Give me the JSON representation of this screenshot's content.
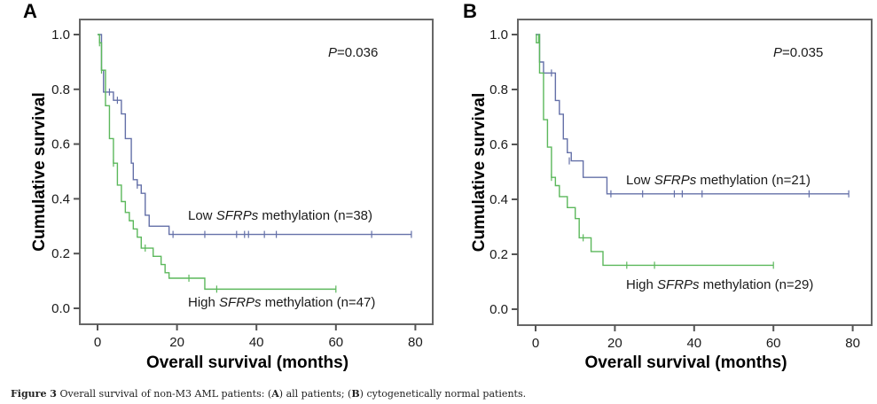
{
  "caption": {
    "label": "Figure 3",
    "text_1": " Overall survival of non-M3 AML patients: (",
    "a": "A",
    "text_2": ") all patients; (",
    "b": "B",
    "text_3": ") cytogenetically normal patients."
  },
  "colors": {
    "low": "#6470a8",
    "high": "#5cb85c",
    "axis": "#555555"
  },
  "chart_data": [
    {
      "type": "line",
      "subtype": "kaplan-meier-step",
      "panel": "A",
      "title": "",
      "xlabel": "Overall survival (months)",
      "ylabel": "Cumulative survival",
      "xlim": [
        -4,
        84
      ],
      "ylim": [
        -0.05,
        1.05
      ],
      "xticks": [
        0,
        20,
        40,
        60,
        80
      ],
      "yticks": [
        "0.0",
        "0.2",
        "0.4",
        "0.6",
        "0.8",
        "1.0"
      ],
      "grid": false,
      "annotation": {
        "p_label": "P",
        "p_value": "=0.036"
      },
      "series": [
        {
          "name": "Low SFRPs methylation (n=38)",
          "label_parts": [
            "Low ",
            "SFRPs",
            " methylation (n=38)"
          ],
          "color_key": "low",
          "steps": [
            [
              0,
              1.0
            ],
            [
              1,
              0.87
            ],
            [
              1.5,
              0.79
            ],
            [
              4,
              0.76
            ],
            [
              6,
              0.71
            ],
            [
              7,
              0.62
            ],
            [
              8.5,
              0.53
            ],
            [
              9,
              0.47
            ],
            [
              10,
              0.45
            ],
            [
              11,
              0.42
            ],
            [
              12,
              0.34
            ],
            [
              13,
              0.3
            ],
            [
              18,
              0.27
            ]
          ],
          "end_x": 79,
          "censors": [
            [
              3,
              0.79
            ],
            [
              5,
              0.76
            ],
            [
              10,
              0.45
            ],
            [
              19,
              0.27
            ],
            [
              27,
              0.27
            ],
            [
              35,
              0.27
            ],
            [
              37,
              0.27
            ],
            [
              38,
              0.27
            ],
            [
              42,
              0.27
            ],
            [
              45,
              0.27
            ],
            [
              69,
              0.27
            ],
            [
              79,
              0.27
            ]
          ]
        },
        {
          "name": "High SFRPs methylation (n=47)",
          "label_parts": [
            "High ",
            "SFRPs",
            " methylation (n=47)"
          ],
          "color_key": "high",
          "steps": [
            [
              0,
              1.0
            ],
            [
              0.5,
              0.97
            ],
            [
              1,
              0.87
            ],
            [
              2,
              0.74
            ],
            [
              3,
              0.62
            ],
            [
              4,
              0.53
            ],
            [
              5,
              0.45
            ],
            [
              6,
              0.39
            ],
            [
              7,
              0.35
            ],
            [
              8,
              0.32
            ],
            [
              9,
              0.29
            ],
            [
              10,
              0.26
            ],
            [
              11,
              0.22
            ],
            [
              14,
              0.19
            ],
            [
              16,
              0.16
            ],
            [
              17,
              0.13
            ],
            [
              18,
              0.11
            ],
            [
              27,
              0.07
            ]
          ],
          "end_x": 60,
          "censors": [
            [
              0.5,
              0.97
            ],
            [
              1,
              0.87
            ],
            [
              4,
              0.53
            ],
            [
              12,
              0.22
            ],
            [
              23,
              0.11
            ],
            [
              30,
              0.07
            ],
            [
              60,
              0.07
            ]
          ]
        }
      ]
    },
    {
      "type": "line",
      "subtype": "kaplan-meier-step",
      "panel": "B",
      "title": "",
      "xlabel": "Overall survival (months)",
      "ylabel": "Cumulative survival",
      "xlim": [
        -4,
        84
      ],
      "ylim": [
        -0.05,
        1.05
      ],
      "xticks": [
        0,
        20,
        40,
        60,
        80
      ],
      "yticks": [
        "0.0",
        "0.2",
        "0.4",
        "0.6",
        "0.8",
        "1.0"
      ],
      "grid": false,
      "annotation": {
        "p_label": "P",
        "p_value": "=0.035"
      },
      "series": [
        {
          "name": "Low SFRPs methylation (n=21)",
          "label_parts": [
            "Low ",
            "SFRPs",
            " methylation (n=21)"
          ],
          "color_key": "low",
          "steps": [
            [
              0,
              1.0
            ],
            [
              1,
              0.9
            ],
            [
              2,
              0.86
            ],
            [
              5,
              0.76
            ],
            [
              6,
              0.71
            ],
            [
              7,
              0.62
            ],
            [
              8,
              0.57
            ],
            [
              9,
              0.54
            ],
            [
              12,
              0.48
            ],
            [
              18,
              0.42
            ]
          ],
          "end_x": 79,
          "censors": [
            [
              4,
              0.86
            ],
            [
              8.5,
              0.54
            ],
            [
              19,
              0.42
            ],
            [
              27,
              0.42
            ],
            [
              35,
              0.42
            ],
            [
              37,
              0.42
            ],
            [
              42,
              0.42
            ],
            [
              69,
              0.42
            ],
            [
              79,
              0.42
            ]
          ]
        },
        {
          "name": "High SFRPs methylation (n=29)",
          "label_parts": [
            "High ",
            "SFRPs",
            " methylation (n=29)"
          ],
          "color_key": "high",
          "steps": [
            [
              0,
              1.0
            ],
            [
              0.2,
              0.97
            ],
            [
              0.8,
              1.0
            ],
            [
              1,
              0.86
            ],
            [
              2,
              0.69
            ],
            [
              3,
              0.59
            ],
            [
              4,
              0.48
            ],
            [
              5,
              0.45
            ],
            [
              6,
              0.41
            ],
            [
              8,
              0.37
            ],
            [
              10,
              0.33
            ],
            [
              11,
              0.26
            ],
            [
              14,
              0.21
            ],
            [
              17,
              0.16
            ]
          ],
          "end_x": 60,
          "censors": [
            [
              4,
              0.48
            ],
            [
              12,
              0.26
            ],
            [
              23,
              0.16
            ],
            [
              30,
              0.16
            ],
            [
              60,
              0.16
            ]
          ]
        }
      ]
    }
  ]
}
